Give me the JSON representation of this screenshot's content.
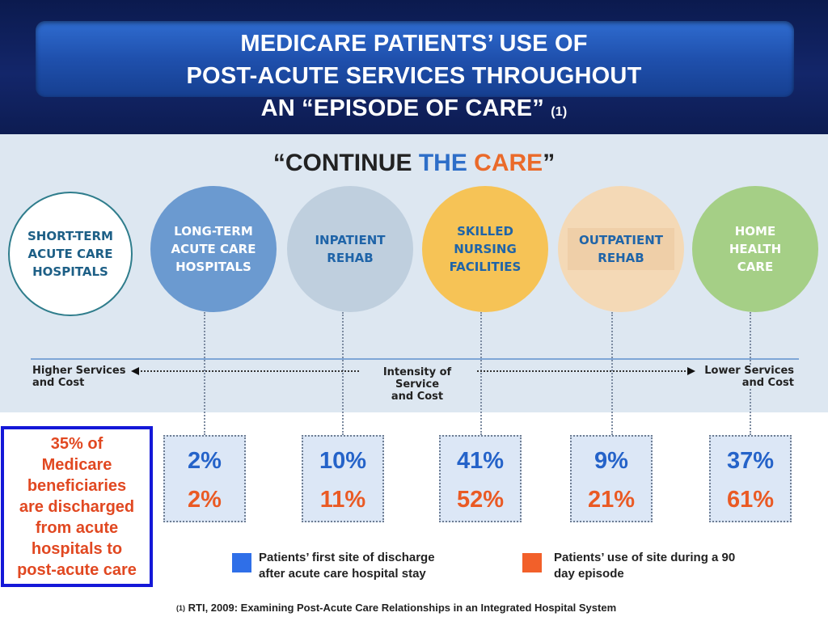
{
  "header": {
    "title_line1": "MEDICARE PATIENTS’ USE OF",
    "title_line2": "POST-ACUTE SERVICES THROUGHOUT",
    "title_line3": "AN “EPISODE OF CARE”",
    "title_ref": "(1)"
  },
  "slogan": {
    "open_quote": "“",
    "word1": "CONTINUE",
    "word2": "THE",
    "word3": "CARE",
    "close_quote": "”"
  },
  "sites": [
    {
      "label": "SHORT-TERM\nACUTE CARE\nHOSPITALS",
      "color": "#ffffff"
    },
    {
      "label": "LONG-TERM\nACUTE CARE\nHOSPITALS",
      "color": "#6b9ad0"
    },
    {
      "label": "INPATIENT\nREHAB",
      "color": "#bfcfde"
    },
    {
      "label": "SKILLED\nNURSING\nFACILITIES",
      "color": "#f6c356"
    },
    {
      "label": "OUTPATIENT\nREHAB",
      "color": "#f4d9b6"
    },
    {
      "label": "HOME\nHEALTH\nCARE",
      "color": "#a5cf86"
    }
  ],
  "axis": {
    "left_label": "Higher Services\nand Cost",
    "center_label": "Intensity of Service\nand Cost",
    "right_label": "Lower Services\nand Cost"
  },
  "callout": {
    "text": "35% of\nMedicare\nbeneficiaries\nare discharged\nfrom acute\nhospitals to\npost-acute care"
  },
  "percentages": [
    {
      "site": "LONG-TERM ACUTE CARE HOSPITALS",
      "first_discharge": "2%",
      "episode_use": "2%"
    },
    {
      "site": "INPATIENT REHAB",
      "first_discharge": "10%",
      "episode_use": "11%"
    },
    {
      "site": "SKILLED NURSING FACILITIES",
      "first_discharge": "41%",
      "episode_use": "52%"
    },
    {
      "site": "OUTPATIENT REHAB",
      "first_discharge": "9%",
      "episode_use": "21%"
    },
    {
      "site": "HOME HEALTH CARE",
      "first_discharge": "37%",
      "episode_use": "61%"
    }
  ],
  "legend": {
    "first_discharge": {
      "text": "Patients’ first site of discharge\nafter acute care hospital stay",
      "color": "#2f6fe8"
    },
    "episode_use": {
      "text": "Patients’ use of site during a 90\nday episode",
      "color": "#f2602a"
    }
  },
  "footnote": {
    "marker": "(1)",
    "text": "RTI, 2009: Examining Post-Acute Care Relationships in an Integrated Hospital System"
  }
}
